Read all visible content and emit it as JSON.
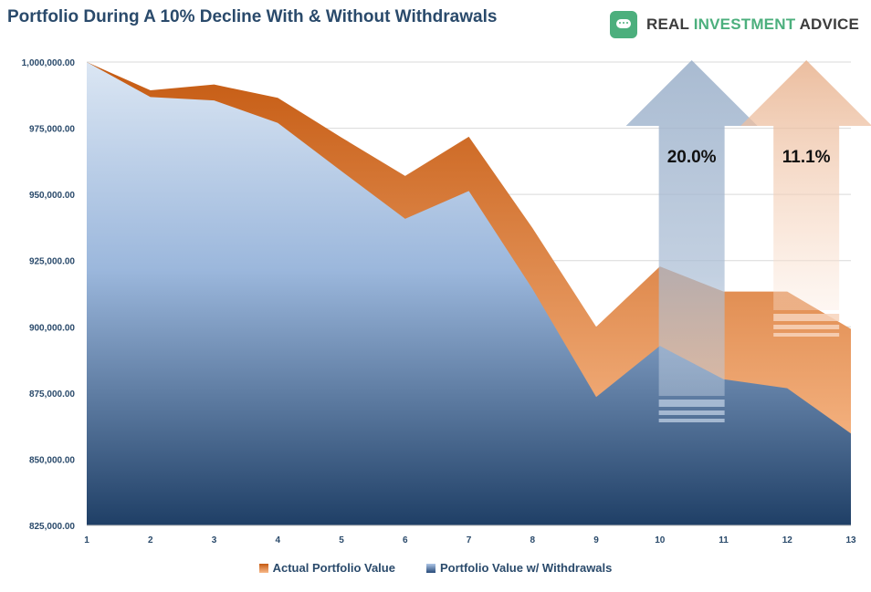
{
  "header": {
    "title": "Portfolio During A 10% Decline With & Without Withdrawals"
  },
  "brand": {
    "word1": "REAL",
    "word2": "INVESTMENT",
    "word3": "ADVICE",
    "accent": "#4caf7d"
  },
  "chart_data": {
    "type": "area",
    "x": [
      1,
      2,
      3,
      4,
      5,
      6,
      7,
      8,
      9,
      10,
      11,
      12,
      13
    ],
    "series": [
      {
        "name": "Actual Portfolio Value",
        "values": [
          1000000,
          989300,
          991500,
          986500,
          971500,
          957000,
          971800,
          937300,
          900000,
          922800,
          913300,
          913300,
          899200
        ]
      },
      {
        "name": "Portfolio Value w/ Withdrawals",
        "values": [
          1000000,
          986800,
          985500,
          977000,
          958800,
          940800,
          951300,
          914300,
          873500,
          892800,
          880200,
          876800,
          859700
        ]
      }
    ],
    "ylim": [
      825000,
      1000000
    ],
    "yticks": [
      1000000,
      975000,
      950000,
      925000,
      900000,
      875000,
      850000,
      825000
    ],
    "ytick_labels": [
      "1,000,000.00",
      "975,000.00",
      "950,000.00",
      "925,000.00",
      "900,000.00",
      "875,000.00",
      "850,000.00",
      "825,000.00"
    ],
    "xtick_labels": [
      "1",
      "2",
      "3",
      "4",
      "5",
      "6",
      "7",
      "8",
      "9",
      "10",
      "11",
      "12",
      "13"
    ],
    "annotations": [
      {
        "text": "20.0%",
        "color": "blue",
        "x_center": 10.5,
        "y_top": 1000000
      },
      {
        "text": "11.1%",
        "color": "orange",
        "x_center": 12.3,
        "y_top": 1000000
      }
    ],
    "grid": true,
    "legend": "bottom",
    "colors": {
      "actual_top": "#c55a11",
      "actual_bottom": "#f8b989",
      "withdraw_top": "#dbe6f3",
      "withdraw_bottom": "#1f3f66",
      "text": "#2a4a6b"
    }
  }
}
